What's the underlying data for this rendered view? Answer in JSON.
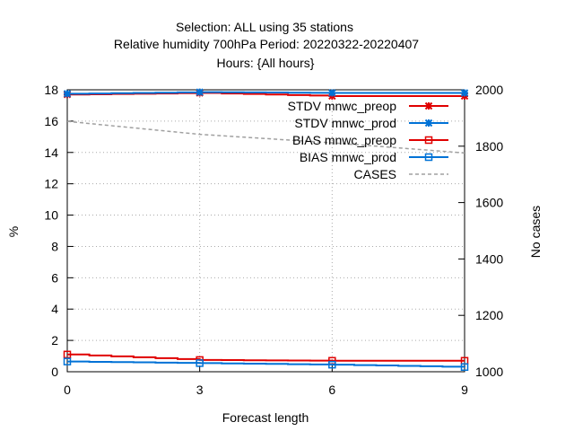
{
  "chart_data": {
    "type": "line",
    "title_lines": [
      "Selection: ALL using    35 stations",
      "Relative humidity 700hPa   Period: 20220322-20220407",
      "Hours: {All hours}"
    ],
    "xlabel": "Forecast length",
    "ylabel": "%",
    "y2label": "No cases",
    "xlim": [
      0,
      9
    ],
    "ylim": [
      0,
      18
    ],
    "y2lim": [
      1000,
      2000
    ],
    "x_ticks": [
      0,
      3,
      6,
      9
    ],
    "y_ticks": [
      0,
      2,
      4,
      6,
      8,
      10,
      12,
      14,
      16,
      18
    ],
    "y2_ticks": [
      1000,
      1200,
      1400,
      1600,
      1800,
      2000
    ],
    "grid": true,
    "legend_position": "top-right",
    "x": [
      0,
      3,
      6,
      9
    ],
    "series": [
      {
        "name": "STDV mnwc_preop",
        "axis": "y",
        "color": "#e00000",
        "marker": "x",
        "values": [
          17.7,
          17.8,
          17.6,
          17.6
        ]
      },
      {
        "name": "STDV mnwc_prod",
        "axis": "y",
        "color": "#0072d6",
        "marker": "x",
        "values": [
          17.75,
          17.85,
          17.8,
          17.8
        ]
      },
      {
        "name": "BIAS mnwc_preop",
        "axis": "y",
        "color": "#e00000",
        "marker": "square",
        "values": [
          1.1,
          0.75,
          0.7,
          0.7
        ]
      },
      {
        "name": "BIAS mnwc_prod",
        "axis": "y",
        "color": "#0072d6",
        "marker": "square",
        "values": [
          0.65,
          0.55,
          0.45,
          0.3
        ]
      },
      {
        "name": "CASES",
        "axis": "y2",
        "color": "#a0a0a0",
        "marker": "none",
        "dashed": true,
        "values": [
          1888,
          1842,
          1812,
          1776
        ]
      }
    ]
  }
}
